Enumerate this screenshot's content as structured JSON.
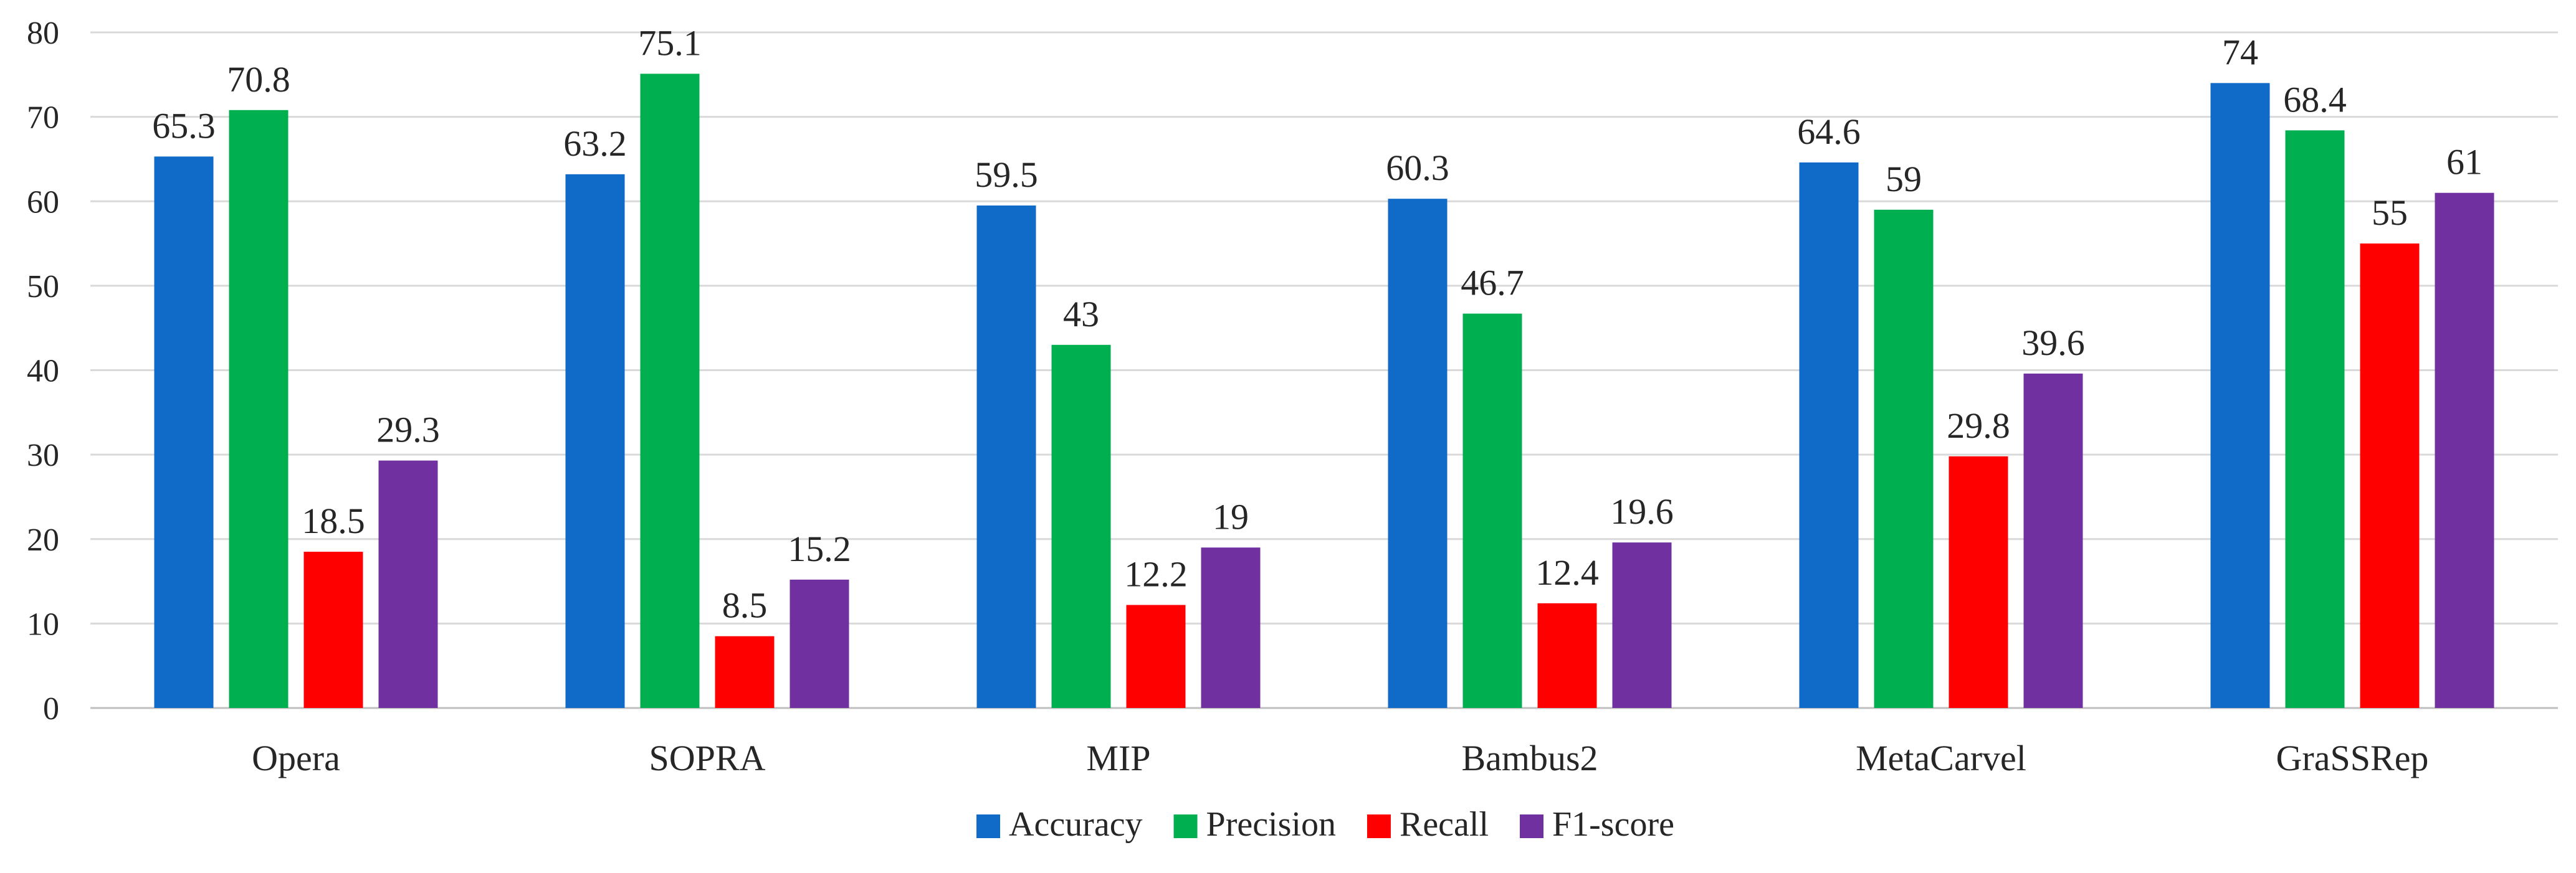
{
  "chart_data": {
    "type": "bar",
    "title": "",
    "xlabel": "",
    "ylabel": "",
    "ylim": [
      0,
      80
    ],
    "yticks": [
      0,
      10,
      20,
      30,
      40,
      50,
      60,
      70,
      80
    ],
    "grid": true,
    "legend_position": "bottom",
    "categories": [
      "Opera",
      "SOPRA",
      "MIP",
      "Bambus2",
      "MetaCarvel",
      "GraSSRep"
    ],
    "series": [
      {
        "name": "Accuracy",
        "color": "#0F6BC7",
        "values": [
          65.3,
          63.2,
          59.5,
          60.3,
          64.6,
          74
        ]
      },
      {
        "name": "Precision",
        "color": "#00B050",
        "values": [
          70.8,
          75.1,
          43,
          46.7,
          59,
          68.4
        ]
      },
      {
        "name": "Recall",
        "color": "#FF0000",
        "values": [
          18.5,
          8.5,
          12.2,
          12.4,
          29.8,
          55
        ]
      },
      {
        "name": "F1-score",
        "color": "#7030A0",
        "values": [
          29.3,
          15.2,
          19,
          19.6,
          39.6,
          61
        ]
      }
    ]
  }
}
